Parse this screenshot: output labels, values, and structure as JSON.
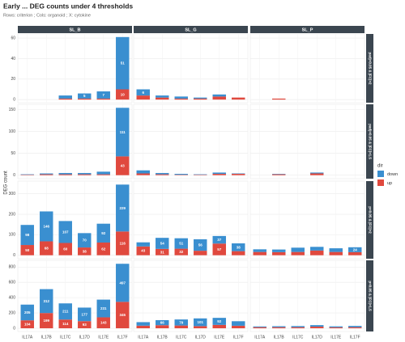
{
  "chart_data": {
    "type": "bar",
    "title": "Early ... DEG counts under 4 thresholds",
    "subtitle": "Rows: criterion ; Cols: organoid ; X: cytokine",
    "y_label": "DEG count",
    "legend_title": "dir",
    "columns": [
      "SL_B",
      "SL_G",
      "SL_P"
    ],
    "categories": [
      "IL17A",
      "IL17B",
      "IL17C",
      "IL17D",
      "IL17E",
      "IL17F"
    ],
    "series": [
      {
        "name": "up",
        "color": "#e0493e"
      },
      {
        "name": "down",
        "color": "#3a8fd0"
      }
    ],
    "grid": true,
    "rows": [
      {
        "label": "padj<0.05 & |FC|>2",
        "ylim": [
          -3,
          64
        ],
        "yticks": [
          0,
          20,
          40,
          60
        ],
        "panels": [
          {
            "values": [
              [
                0,
                0,
                1,
                1,
                1,
                10
              ],
              [
                0,
                0,
                3,
                5,
                7,
                51
              ]
            ]
          },
          {
            "values": [
              [
                4,
                2,
                1,
                1,
                3,
                2
              ],
              [
                6,
                2,
                2,
                1,
                2,
                0
              ]
            ]
          },
          {
            "values": [
              [
                0,
                1,
                0,
                0,
                0,
                0
              ],
              [
                0,
                0,
                0,
                0,
                0,
                0
              ]
            ]
          }
        ]
      },
      {
        "label": "padj<0.05 & |FC|>1.5",
        "ylim": [
          -8,
          162
        ],
        "yticks": [
          0,
          50,
          100,
          150
        ],
        "panels": [
          {
            "values": [
              [
                1,
                2,
                2,
                2,
                2,
                43
              ],
              [
                1,
                2,
                3,
                3,
                6,
                111
              ]
            ]
          },
          {
            "values": [
              [
                4,
                2,
                1,
                1,
                3,
                3
              ],
              [
                7,
                3,
                2,
                1,
                3,
                1
              ]
            ]
          },
          {
            "values": [
              [
                0,
                2,
                0,
                4,
                0,
                0
              ],
              [
                0,
                1,
                0,
                2,
                0,
                0
              ]
            ]
          }
        ]
      },
      {
        "label": "p<0.05 & |FC|>2",
        "ylim": [
          -17,
          362
        ],
        "yticks": [
          0,
          100,
          200,
          300
        ],
        "panels": [
          {
            "values": [
              [
                50,
                68,
                60,
                38,
                62,
                116
              ],
              [
                98,
                146,
                107,
                70,
                92,
                229
              ]
            ]
          },
          {
            "values": [
              [
                43,
                31,
                32,
                22,
                57,
                20
              ],
              [
                20,
                54,
                51,
                56,
                37,
                38
              ]
            ]
          },
          {
            "values": [
              [
                16,
                15,
                16,
                23,
                16,
                15
              ],
              [
                13,
                13,
                21,
                18,
                18,
                24
              ]
            ]
          }
        ]
      },
      {
        "label": "p<0.05 & |FC|>1.5",
        "ylim": [
          -42,
          887
        ],
        "yticks": [
          0,
          200,
          400,
          600,
          800
        ],
        "panels": [
          {
            "values": [
              [
                104,
                199,
                114,
                93,
                143,
                345
              ],
              [
                205,
                312,
                211,
                177,
                231,
                497
              ]
            ]
          },
          {
            "values": [
              [
                34,
                40,
                36,
                28,
                44,
                33
              ],
              [
                46,
                66,
                79,
                101,
                92,
                59
              ]
            ]
          },
          {
            "values": [
              [
                14,
                14,
                14,
                21,
                12,
                14
              ],
              [
                10,
                13,
                15,
                20,
                13,
                17
              ]
            ]
          }
        ]
      }
    ]
  }
}
